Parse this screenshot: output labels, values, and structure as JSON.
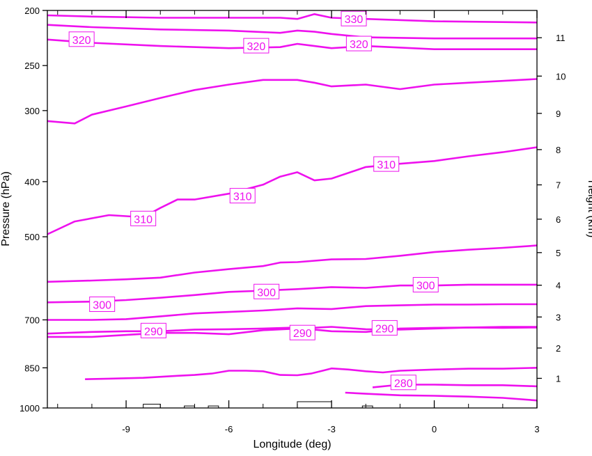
{
  "chart_data": {
    "type": "line",
    "subtype": "vertical cross-section, potential temperature contours",
    "xlabel": "Longitude (deg)",
    "ylabel": "Pressure (hPa)",
    "y2label": "Height (km)",
    "xlim": [
      -11.3,
      3
    ],
    "ylim": [
      1000,
      200
    ],
    "y_scale": "log-pressure (inverted)",
    "x_ticks": [
      -9,
      -6,
      -3,
      0,
      3
    ],
    "x_tick_labels": [
      "-9",
      "-6",
      "-3",
      "0",
      "3"
    ],
    "y_ticks": [
      200,
      250,
      300,
      400,
      500,
      700,
      850,
      1000
    ],
    "y_tick_labels": [
      "200",
      "250",
      "300",
      "400",
      "500",
      "700",
      "850",
      "1000"
    ],
    "y2_ticks": [
      1,
      2,
      3,
      4,
      5,
      6,
      7,
      8,
      9,
      10,
      11
    ],
    "y2_tick_labels": [
      "1",
      "2",
      "3",
      "4",
      "5",
      "6",
      "7",
      "8",
      "9",
      "10",
      "11"
    ],
    "grid": false,
    "legend": "none",
    "colors": {
      "contour": "#ee11ee",
      "terrain": "#000000",
      "axis": "#000000"
    },
    "series": [
      {
        "x": [
          -11.3,
          -10,
          -8,
          -6,
          -4.5,
          -4,
          -3.5,
          -3,
          -2,
          0,
          3
        ],
        "y": [
          204,
          205,
          206,
          206,
          206,
          207,
          203,
          206,
          207,
          209,
          210
        ]
      },
      {
        "x": [
          -11.3,
          -10,
          -8,
          -6,
          -4.5,
          -4,
          -3.5,
          -3,
          -2,
          0,
          3
        ],
        "y": [
          212,
          214,
          216,
          217,
          219,
          217,
          218,
          220,
          223,
          224,
          224
        ]
      },
      {
        "x": [
          -11.3,
          -10,
          -8,
          -6,
          -4.5,
          -4,
          -3.5,
          -3,
          -2,
          0,
          3
        ],
        "y": [
          225,
          228,
          231,
          233,
          232,
          229,
          231,
          233,
          231,
          234,
          234
        ]
      },
      {
        "x": [
          -11.3,
          -10.5,
          -10,
          -9,
          -8,
          -7,
          -6,
          -5,
          -4,
          -3.5,
          -3,
          -2,
          -1,
          0,
          1,
          2,
          3
        ],
        "y": [
          313,
          316,
          305,
          295,
          285,
          276,
          270,
          265,
          265,
          268,
          272,
          270,
          275,
          270,
          268,
          266,
          264
        ]
      },
      {
        "x": [
          -11.3,
          -10.5,
          -9.5,
          -8.5,
          -8,
          -7.5,
          -7,
          -6,
          -5,
          -4.5,
          -4,
          -3.5,
          -3,
          -2,
          -1,
          0,
          1,
          2,
          3
        ],
        "y": [
          495,
          470,
          458,
          462,
          445,
          430,
          430,
          420,
          405,
          392,
          385,
          398,
          395,
          377,
          372,
          368,
          361,
          355,
          348
        ]
      },
      {
        "x": [
          -11.3,
          -10,
          -9,
          -8,
          -7,
          -6,
          -5,
          -4.5,
          -4,
          -3,
          -2,
          -1,
          0,
          1,
          2,
          3
        ],
        "y": [
          600,
          597,
          594,
          590,
          578,
          570,
          563,
          555,
          554,
          548,
          547,
          540,
          532,
          527,
          523,
          518
        ]
      },
      {
        "x": [
          -11.3,
          -10,
          -9,
          -8,
          -7,
          -6,
          -5,
          -4,
          -3,
          -2,
          -1,
          0,
          1,
          2,
          3
        ],
        "y": [
          652,
          650,
          646,
          640,
          633,
          625,
          622,
          618,
          613,
          615,
          609,
          609,
          607,
          607,
          607
        ]
      },
      {
        "x": [
          -11.3,
          -10,
          -9,
          -8,
          -7,
          -6,
          -5,
          -4,
          -3,
          -2,
          -1,
          0,
          1,
          2,
          3
        ],
        "y": [
          700,
          700,
          698,
          690,
          682,
          678,
          674,
          668,
          670,
          662,
          660,
          658,
          658,
          657,
          657
        ]
      },
      {
        "x": [
          -11.3,
          -10,
          -9,
          -8,
          -7,
          -6,
          -5,
          -4,
          -3.5,
          -3,
          -2,
          -1,
          0,
          1,
          2,
          3
        ],
        "y": [
          740,
          735,
          733,
          733,
          728,
          727,
          725,
          722,
          728,
          733,
          735,
          725,
          723,
          722,
          720,
          720
        ]
      },
      {
        "x": [
          -11.3,
          -10,
          -9,
          -8,
          -7,
          -6,
          -5,
          -4,
          -3,
          -2,
          -1,
          0,
          1,
          2,
          3
        ],
        "y": [
          750,
          750,
          744,
          738,
          738,
          742,
          730,
          725,
          720,
          727,
          728,
          725,
          722,
          723,
          722
        ]
      },
      {
        "x": [
          -10.2,
          -9.5,
          -8.5,
          -7.5,
          -7,
          -6.5,
          -6,
          -5.5,
          -5,
          -4.5,
          -4,
          -3.6,
          -3.2,
          -3,
          -2.5,
          -2,
          -1.5,
          -1,
          0,
          1,
          2,
          3
        ],
        "y": [
          890,
          888,
          885,
          878,
          875,
          870,
          860,
          860,
          862,
          875,
          876,
          870,
          858,
          852,
          856,
          862,
          866,
          860,
          856,
          853,
          853,
          850
        ]
      },
      {
        "x": [
          -1.8,
          -1,
          0,
          1,
          2,
          3
        ],
        "y": [
          920,
          910,
          910,
          912,
          912,
          916
        ]
      },
      {
        "x": [
          -2.6,
          -2,
          -1,
          0,
          1,
          2,
          3
        ],
        "y": [
          940,
          944,
          950,
          952,
          955,
          960,
          970
        ]
      }
    ],
    "contour_labels": [
      {
        "text": "330",
        "x": -2.35,
        "y": 207
      },
      {
        "text": "320",
        "x": -10.3,
        "y": 225
      },
      {
        "text": "320",
        "x": -5.2,
        "y": 231
      },
      {
        "text": "320",
        "x": -2.2,
        "y": 229
      },
      {
        "text": "310",
        "x": -8.5,
        "y": 465
      },
      {
        "text": "310",
        "x": -5.6,
        "y": 424
      },
      {
        "text": "310",
        "x": -1.4,
        "y": 373
      },
      {
        "text": "300",
        "x": -4.9,
        "y": 625
      },
      {
        "text": "300",
        "x": -0.25,
        "y": 608
      },
      {
        "text": "300",
        "x": -9.7,
        "y": 658
      },
      {
        "text": "290",
        "x": -8.2,
        "y": 732
      },
      {
        "text": "290",
        "x": -3.85,
        "y": 738
      },
      {
        "text": "290",
        "x": -1.45,
        "y": 724
      },
      {
        "text": "280",
        "x": -0.9,
        "y": 903
      }
    ],
    "terrain": {
      "description": "surface elevation outline along bottom axis",
      "blocks": [
        {
          "x": [
            -8.5,
            -8.0
          ],
          "top": 985
        },
        {
          "x": [
            -7.3,
            -7.0
          ],
          "top": 992
        },
        {
          "x": [
            -6.6,
            -6.3
          ],
          "top": 992
        },
        {
          "x": [
            -4.0,
            -3.0
          ],
          "top": 975
        },
        {
          "x": [
            -2.1,
            -1.8
          ],
          "top": 992
        }
      ]
    }
  }
}
